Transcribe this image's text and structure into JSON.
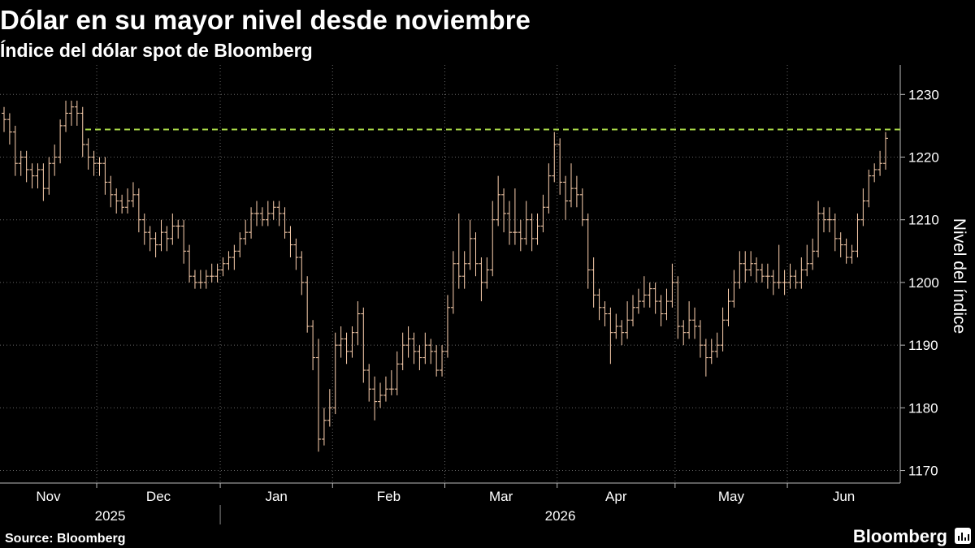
{
  "chart_data": {
    "type": "ohlc",
    "title": "Dólar en su mayor nivel desde noviembre",
    "subtitle": "Índice del dólar spot de Bloomberg",
    "y_axis_label": "Nivel del índice",
    "source": "Source: Bloomberg",
    "logo": "Bloomberg",
    "color": "#ffd2b0",
    "ylim": [
      1168,
      1234.7
    ],
    "yticks": [
      1170,
      1180,
      1190,
      1200,
      1210,
      1220,
      1230
    ],
    "grid": true,
    "months": [
      "Nov",
      "Dec",
      "Jan",
      "Feb",
      "Mar",
      "Apr",
      "May",
      "Jun"
    ],
    "month_starts": [
      0,
      17,
      39,
      59,
      79,
      99,
      120,
      140
    ],
    "years": [
      "2025",
      "2026"
    ],
    "year_starts": [
      0,
      39
    ],
    "reference_line": {
      "value": 1224.4,
      "color": "#a8d848"
    },
    "ohlc": [
      [
        1227,
        1228,
        1224,
        1226
      ],
      [
        1226,
        1227,
        1222,
        1224
      ],
      [
        1224,
        1225,
        1217,
        1219
      ],
      [
        1219,
        1221,
        1217,
        1220
      ],
      [
        1220,
        1221,
        1216,
        1218
      ],
      [
        1218,
        1219,
        1215,
        1217
      ],
      [
        1217,
        1219,
        1215,
        1218
      ],
      [
        1218,
        1219,
        1213,
        1215
      ],
      [
        1215,
        1220,
        1214,
        1219
      ],
      [
        1219,
        1222,
        1217,
        1220
      ],
      [
        1220,
        1226,
        1219,
        1225
      ],
      [
        1225,
        1229,
        1224,
        1227
      ],
      [
        1227,
        1229,
        1225,
        1228
      ],
      [
        1228,
        1229,
        1225,
        1227
      ],
      [
        1227,
        1228,
        1220,
        1222
      ],
      [
        1222,
        1223,
        1218,
        1220
      ],
      [
        1220,
        1221,
        1217,
        1219
      ],
      [
        1219,
        1220,
        1217,
        1219
      ],
      [
        1219,
        1220,
        1214,
        1216
      ],
      [
        1216,
        1217,
        1212,
        1214
      ],
      [
        1214,
        1215,
        1211,
        1213
      ],
      [
        1213,
        1214,
        1211,
        1212
      ],
      [
        1212,
        1215,
        1211,
        1213
      ],
      [
        1213,
        1216,
        1212,
        1214
      ],
      [
        1214,
        1215,
        1208,
        1210
      ],
      [
        1210,
        1211,
        1206,
        1208
      ],
      [
        1208,
        1209,
        1205,
        1207
      ],
      [
        1207,
        1208,
        1204,
        1206
      ],
      [
        1206,
        1210,
        1205,
        1208
      ],
      [
        1208,
        1209,
        1205,
        1207
      ],
      [
        1207,
        1211,
        1206,
        1209
      ],
      [
        1209,
        1210,
        1207,
        1209
      ],
      [
        1209,
        1210,
        1203,
        1205
      ],
      [
        1205,
        1206,
        1200,
        1201
      ],
      [
        1201,
        1202,
        1199,
        1200
      ],
      [
        1200,
        1202,
        1199,
        1200
      ],
      [
        1200,
        1202,
        1199,
        1201
      ],
      [
        1201,
        1203,
        1200,
        1201
      ],
      [
        1201,
        1203,
        1200,
        1202
      ],
      [
        1202,
        1204,
        1201,
        1203
      ],
      [
        1203,
        1205,
        1202,
        1204
      ],
      [
        1204,
        1206,
        1202,
        1205
      ],
      [
        1205,
        1208,
        1204,
        1207
      ],
      [
        1207,
        1210,
        1206,
        1208
      ],
      [
        1208,
        1212,
        1207,
        1211
      ],
      [
        1211,
        1213,
        1209,
        1211
      ],
      [
        1211,
        1212,
        1209,
        1210
      ],
      [
        1210,
        1213,
        1209,
        1211
      ],
      [
        1211,
        1213,
        1210,
        1212
      ],
      [
        1212,
        1213,
        1209,
        1211
      ],
      [
        1211,
        1212,
        1207,
        1208
      ],
      [
        1208,
        1209,
        1204,
        1206
      ],
      [
        1206,
        1207,
        1202,
        1204
      ],
      [
        1204,
        1205,
        1198,
        1200
      ],
      [
        1200,
        1201,
        1192,
        1193
      ],
      [
        1193,
        1194,
        1186,
        1188
      ],
      [
        1188,
        1191,
        1173,
        1175
      ],
      [
        1175,
        1180,
        1174,
        1178
      ],
      [
        1178,
        1183,
        1177,
        1180
      ],
      [
        1180,
        1192,
        1179,
        1190
      ],
      [
        1190,
        1193,
        1188,
        1191
      ],
      [
        1191,
        1192,
        1187,
        1189
      ],
      [
        1189,
        1193,
        1188,
        1192
      ],
      [
        1192,
        1197,
        1190,
        1195
      ],
      [
        1195,
        1196,
        1184,
        1186
      ],
      [
        1186,
        1187,
        1181,
        1183
      ],
      [
        1183,
        1185,
        1178,
        1181
      ],
      [
        1181,
        1184,
        1180,
        1182
      ],
      [
        1182,
        1185,
        1181,
        1183
      ],
      [
        1183,
        1186,
        1182,
        1183
      ],
      [
        1183,
        1189,
        1182,
        1187
      ],
      [
        1187,
        1192,
        1186,
        1190
      ],
      [
        1190,
        1193,
        1188,
        1191
      ],
      [
        1191,
        1192,
        1187,
        1189
      ],
      [
        1189,
        1190,
        1186,
        1188
      ],
      [
        1188,
        1192,
        1187,
        1190
      ],
      [
        1190,
        1191,
        1187,
        1189
      ],
      [
        1189,
        1190,
        1185,
        1186
      ],
      [
        1186,
        1190,
        1185,
        1189
      ],
      [
        1189,
        1198,
        1188,
        1196
      ],
      [
        1196,
        1205,
        1195,
        1203
      ],
      [
        1203,
        1211,
        1199,
        1201
      ],
      [
        1201,
        1205,
        1199,
        1203
      ],
      [
        1203,
        1210,
        1202,
        1207
      ],
      [
        1207,
        1208,
        1201,
        1203
      ],
      [
        1203,
        1204,
        1197,
        1200
      ],
      [
        1200,
        1204,
        1199,
        1202
      ],
      [
        1202,
        1213,
        1201,
        1210
      ],
      [
        1210,
        1217,
        1209,
        1214
      ],
      [
        1214,
        1215,
        1208,
        1211
      ],
      [
        1211,
        1213,
        1206,
        1208
      ],
      [
        1208,
        1215,
        1206,
        1208
      ],
      [
        1208,
        1210,
        1205,
        1207
      ],
      [
        1207,
        1213,
        1206,
        1210
      ],
      [
        1210,
        1211,
        1205,
        1207
      ],
      [
        1207,
        1211,
        1206,
        1209
      ],
      [
        1209,
        1214,
        1208,
        1212
      ],
      [
        1212,
        1219,
        1211,
        1217
      ],
      [
        1217,
        1224,
        1216,
        1222
      ],
      [
        1222,
        1223,
        1214,
        1216
      ],
      [
        1216,
        1217,
        1210,
        1213
      ],
      [
        1213,
        1219,
        1212,
        1215
      ],
      [
        1215,
        1217,
        1212,
        1214
      ],
      [
        1214,
        1215,
        1209,
        1210
      ],
      [
        1210,
        1211,
        1199,
        1202
      ],
      [
        1202,
        1204,
        1196,
        1198
      ],
      [
        1198,
        1199,
        1194,
        1196
      ],
      [
        1196,
        1197,
        1193,
        1195
      ],
      [
        1195,
        1196,
        1187,
        1192
      ],
      [
        1192,
        1195,
        1191,
        1193
      ],
      [
        1193,
        1194,
        1190,
        1192
      ],
      [
        1192,
        1197,
        1191,
        1194
      ],
      [
        1194,
        1198,
        1193,
        1196
      ],
      [
        1196,
        1199,
        1195,
        1197
      ],
      [
        1197,
        1201,
        1196,
        1198
      ],
      [
        1198,
        1200,
        1196,
        1199
      ],
      [
        1199,
        1200,
        1195,
        1197
      ],
      [
        1197,
        1198,
        1193,
        1195
      ],
      [
        1195,
        1199,
        1194,
        1197
      ],
      [
        1197,
        1203,
        1196,
        1200
      ],
      [
        1200,
        1201,
        1191,
        1193
      ],
      [
        1193,
        1194,
        1190,
        1192
      ],
      [
        1192,
        1197,
        1191,
        1194
      ],
      [
        1194,
        1196,
        1191,
        1193
      ],
      [
        1193,
        1194,
        1188,
        1190
      ],
      [
        1190,
        1191,
        1185,
        1188
      ],
      [
        1188,
        1191,
        1187,
        1189
      ],
      [
        1189,
        1192,
        1188,
        1190
      ],
      [
        1190,
        1196,
        1189,
        1194
      ],
      [
        1194,
        1199,
        1193,
        1197
      ],
      [
        1197,
        1202,
        1196,
        1200
      ],
      [
        1200,
        1205,
        1199,
        1203
      ],
      [
        1203,
        1205,
        1200,
        1202
      ],
      [
        1202,
        1205,
        1201,
        1203
      ],
      [
        1203,
        1204,
        1200,
        1202
      ],
      [
        1202,
        1203,
        1200,
        1201
      ],
      [
        1201,
        1203,
        1199,
        1201
      ],
      [
        1201,
        1202,
        1198,
        1200
      ],
      [
        1200,
        1206,
        1199,
        1200
      ],
      [
        1200,
        1202,
        1198,
        1200
      ],
      [
        1200,
        1203,
        1199,
        1201
      ],
      [
        1201,
        1202,
        1199,
        1200
      ],
      [
        1200,
        1204,
        1199,
        1202
      ],
      [
        1202,
        1206,
        1201,
        1203
      ],
      [
        1203,
        1207,
        1202,
        1205
      ],
      [
        1205,
        1213,
        1204,
        1211
      ],
      [
        1211,
        1212,
        1208,
        1210
      ],
      [
        1210,
        1212,
        1208,
        1210
      ],
      [
        1210,
        1211,
        1205,
        1207
      ],
      [
        1207,
        1208,
        1204,
        1206
      ],
      [
        1206,
        1207,
        1203,
        1204
      ],
      [
        1204,
        1206,
        1203,
        1205
      ],
      [
        1205,
        1211,
        1204,
        1210
      ],
      [
        1210,
        1215,
        1209,
        1213
      ],
      [
        1213,
        1218,
        1212,
        1217
      ],
      [
        1217,
        1219,
        1216,
        1218
      ],
      [
        1218,
        1221,
        1217,
        1219
      ],
      [
        1219,
        1224,
        1218,
        1223
      ]
    ]
  }
}
